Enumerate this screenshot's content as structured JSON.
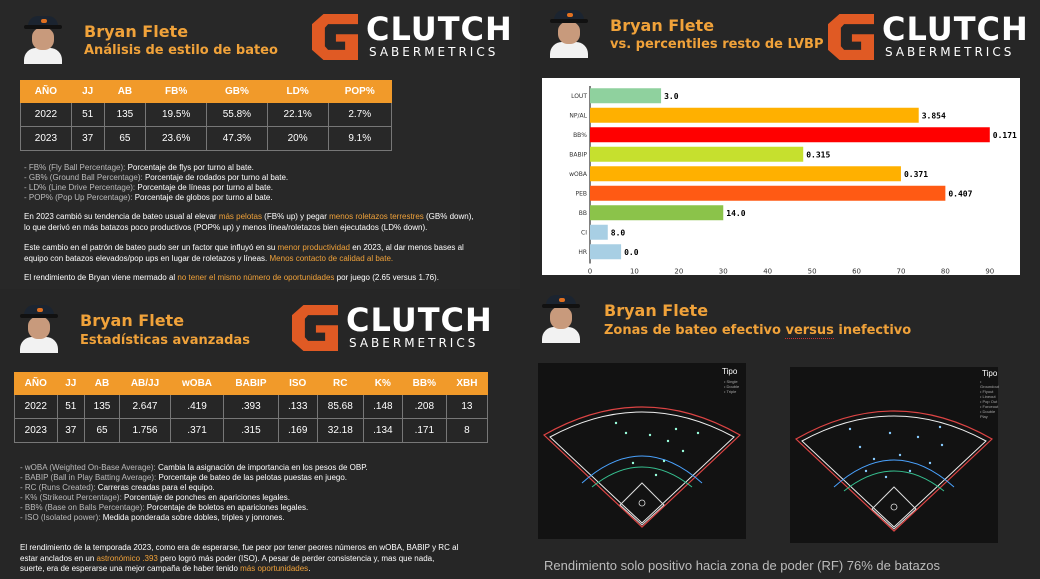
{
  "q1": {
    "name": "Bryan Flete",
    "subtitle": "Análisis de estilo de bateo",
    "logo_main": "CLUTCH",
    "logo_sub": "SABERMETRICS",
    "table": {
      "headers": [
        "AÑO",
        "JJ",
        "AB",
        "FB%",
        "GB%",
        "LD%",
        "POP%"
      ],
      "rows": [
        [
          "2022",
          "51",
          "135",
          "19.5%",
          "55.8%",
          "22.1%",
          "2.7%"
        ],
        [
          "2023",
          "37",
          "65",
          "23.6%",
          "47.3%",
          "20%",
          "9.1%"
        ]
      ]
    },
    "defs": [
      {
        "term": "- FB% (Fly Ball Percentage):",
        "desc": " Porcentaje de flys por turno al bate."
      },
      {
        "term": "- GB% (Ground Ball Percentage):",
        "desc": " Porcentaje de rodados por turno al bate."
      },
      {
        "term": "- LD% (Line Drive Percentage):",
        "desc": " Porcentaje de líneas por turno al bate."
      },
      {
        "term": "- POP% (Pop Up Percentage):",
        "desc": " Porcentaje de globos por turno al bate."
      }
    ],
    "p1": {
      "a": "En 2023 cambió su tendencia de bateo usual al elevar ",
      "b": "más pelotas",
      "c": " (FB% up) y pegar ",
      "d": "menos roletazos terrestres",
      "e": " (GB% down),",
      "f": "lo que derivó en más batazos poco productivos (POP% up) y menos línea/roletazos bien ejecutados (LD% down)."
    },
    "p2": {
      "a": "Este cambio en el patrón de bateo pudo ser un factor que influyó en su ",
      "b": "menor productividad",
      "c": " en 2023, al dar menos bases al",
      "d": "equipo con batazos elevados/pop ups en lugar de roletazos y líneas. ",
      "e": "Menos contacto de calidad al bate."
    },
    "p3": {
      "a": "El rendimiento de Bryan viene mermado al ",
      "b": "no tener el mismo número de oportunidades",
      "c": " por juego (2.65 versus 1.76)."
    }
  },
  "q2": {
    "name": "Bryan Flete",
    "subtitle": "vs. percentiles resto de LVBP",
    "logo_main": "CLUTCH",
    "logo_sub": "SABERMETRICS"
  },
  "chart_data": {
    "type": "bar",
    "orientation": "horizontal",
    "categories": [
      "LOUT",
      "NP/AL",
      "BB%",
      "BABIP",
      "wOBA",
      "PEB",
      "BB",
      "CI",
      "HR"
    ],
    "values": [
      16,
      74,
      90,
      48,
      70,
      80,
      30,
      4,
      7
    ],
    "labels": [
      "3.0",
      "3.854",
      "0.171",
      "0.315",
      "0.371",
      "0.407",
      "14.0",
      "8.0",
      "0.0"
    ],
    "colors": [
      "#8fd19e",
      "#ffb000",
      "#ff0000",
      "#c6e02e",
      "#ffb000",
      "#ff5a14",
      "#8bc34a",
      "#a8cfe4",
      "#a8cfe4"
    ],
    "xticks": [
      0,
      10,
      20,
      30,
      40,
      50,
      60,
      70,
      80,
      90
    ],
    "xlim": [
      0,
      95
    ]
  },
  "q3": {
    "name": "Bryan Flete",
    "subtitle": "Estadísticas avanzadas",
    "logo_main": "CLUTCH",
    "logo_sub": "SABERMETRICS",
    "table": {
      "headers": [
        "AÑO",
        "JJ",
        "AB",
        "AB/JJ",
        "wOBA",
        "BABIP",
        "ISO",
        "RC",
        "K%",
        "BB%",
        "XBH"
      ],
      "rows": [
        [
          "2022",
          "51",
          "135",
          "2.647",
          ".419",
          ".393",
          ".133",
          "85.68",
          ".148",
          ".208",
          "13"
        ],
        [
          "2023",
          "37",
          "65",
          "1.756",
          ".371",
          ".315",
          ".169",
          "32.18",
          ".134",
          ".171",
          "8"
        ]
      ]
    },
    "defs": [
      {
        "term": "- wOBA (Weighted On-Base Average):",
        "desc": " Cambia la asignación de importancia en los pesos de OBP."
      },
      {
        "term": "- BABIP (Ball in Play Batting Average):",
        "desc": " Porcentaje de bateo de las pelotas puestas en juego."
      },
      {
        "term": "- RC (Runs Created):",
        "desc": " Carreras creadas para el equipo."
      },
      {
        "term": "- K% (Strikeout Percentage):",
        "desc": " Porcentaje de ponches en apariciones legales."
      },
      {
        "term": "- BB% (Base on Balls Percentage):",
        "desc": " Porcentaje de boletos en apariciones legales."
      },
      {
        "term": "- ISO (Isolated power):",
        "desc": " Medida ponderada sobre dobles, triples y jonrones."
      }
    ],
    "p1": {
      "a": "El rendimiento de la temporada 2023, como era de esperarse, fue peor por tener peores números en wOBA, BABIP y RC al",
      "b": "estar anclados en un ",
      "c": "astronómico .393",
      "d": " pero logró más poder (ISO). A pesar de perder consistencia y, mas que nada,",
      "e": "suerte, era de esperarse una mejor campaña de haber tenido ",
      "f": "más oportunidades",
      "g": "."
    }
  },
  "q4": {
    "name": "Bryan Flete",
    "subtitle_a": "Zonas de bateo efectivo ",
    "subtitle_b": "versus",
    "subtitle_c": " inefectivo",
    "tipo": "Tipo",
    "legend_left": [
      "Single",
      "Double",
      "Triple"
    ],
    "legend_right": [
      "Groundout",
      "Flyout",
      "Lineout",
      "Pop Out",
      "Forceout",
      "Double Play"
    ],
    "caption": "Rendimiento solo positivo hacia zona de poder (RF) 76% de batazos"
  }
}
